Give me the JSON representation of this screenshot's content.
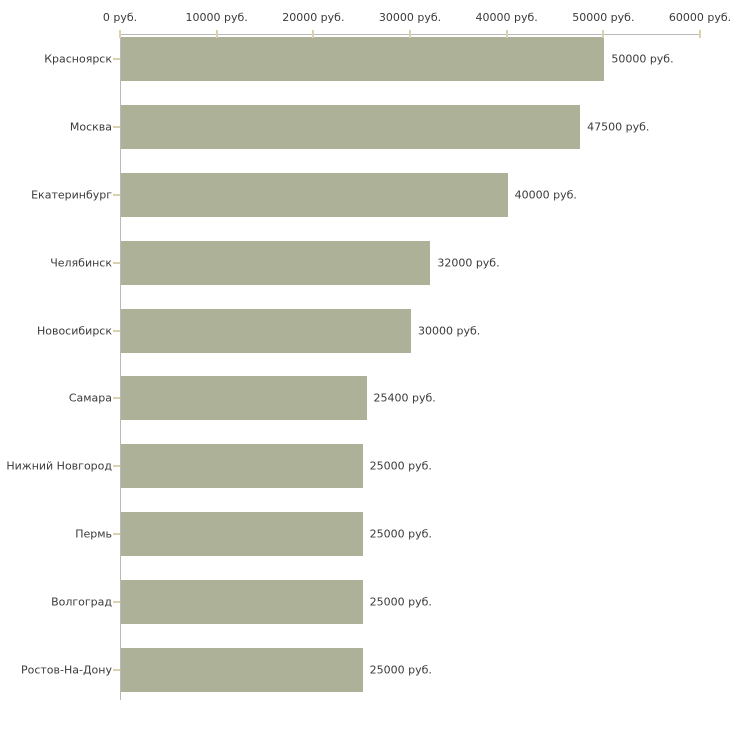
{
  "chart_data": {
    "type": "bar",
    "orientation": "horizontal",
    "categories": [
      "Красноярск",
      "Москва",
      "Екатеринбург",
      "Челябинск",
      "Новосибирск",
      "Самара",
      "Нижний Новгород",
      "Пермь",
      "Волгоград",
      "Ростов-На-Дону"
    ],
    "values": [
      50000,
      47500,
      40000,
      32000,
      30000,
      25400,
      25000,
      25000,
      25000,
      25000
    ],
    "value_labels": [
      "50000 руб.",
      "47500 руб.",
      "40000 руб.",
      "32000 руб.",
      "30000 руб.",
      "25400 руб.",
      "25000 руб.",
      "25000 руб.",
      "25000 руб.",
      "25000 руб."
    ],
    "title": "",
    "xlabel": "",
    "ylabel": "",
    "xlim": [
      0,
      60000
    ],
    "x_ticks": [
      0,
      10000,
      20000,
      30000,
      40000,
      50000,
      60000
    ],
    "x_tick_labels": [
      "0 руб.",
      "10000 руб.",
      "20000 руб.",
      "30000 руб.",
      "40000 руб.",
      "50000 руб.",
      "60000 руб."
    ],
    "grid": false,
    "legend": false,
    "colors": {
      "bar_fill": "#acb197",
      "axis_line": "#b9b9b9",
      "tick_mark": "#d8d3ae",
      "text": "#3b3b3b",
      "background": "#ffffff"
    }
  }
}
